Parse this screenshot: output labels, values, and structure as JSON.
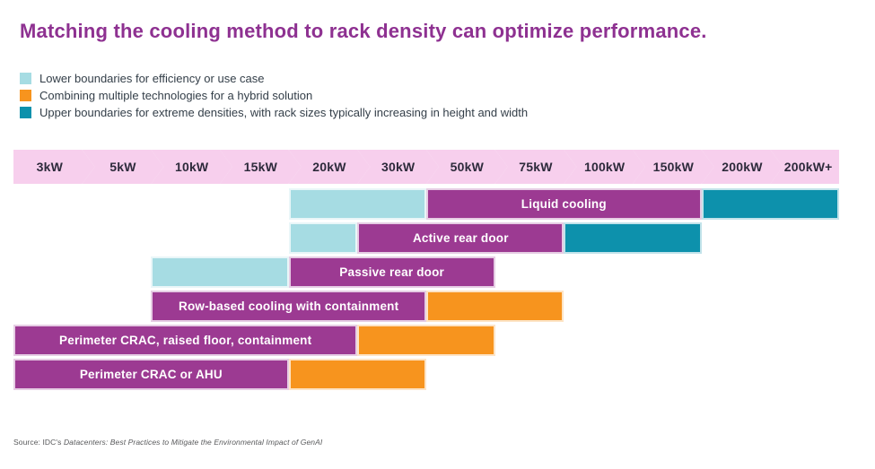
{
  "title": "Matching the cooling method to rack density can optimize performance.",
  "colors": {
    "title": "#8e3191",
    "legend_text": "#333e48",
    "axis_fill": "#f7cfed",
    "axis_text": "#2d2a3b"
  },
  "legend": {
    "items": [
      {
        "key": "lower",
        "color": "#a6dce3",
        "label": "Lower boundaries for efficiency or use case"
      },
      {
        "key": "hybrid",
        "color": "#f7941e",
        "label": "Combining multiple technologies for a hybrid solution"
      },
      {
        "key": "upper",
        "color": "#0d91ac",
        "label": "Upper boundaries for extreme densities, with rack sizes typically increasing in height and width"
      }
    ]
  },
  "chart_data": {
    "type": "range_bar",
    "title": "Cooling method vs. rack density",
    "x_axis": {
      "unit": "kW",
      "columns": [
        "3kW",
        "5kW",
        "10kW",
        "15kW",
        "20kW",
        "30kW",
        "50kW",
        "75kW",
        "100kW",
        "150kW",
        "200kW",
        "200kW+"
      ]
    },
    "colors": {
      "lower": "#a6dce3",
      "main": "#9c3a92",
      "hybrid": "#f7941e",
      "upper": "#0d91ac",
      "header": "#f7cfed"
    },
    "legend_position": "top-left",
    "rows": [
      {
        "label": "Liquid cooling",
        "segments": [
          {
            "type": "lower",
            "from": "20kW",
            "to": "50kW",
            "start": 4,
            "end": 6
          },
          {
            "type": "main",
            "from": "50kW",
            "to": "200kW",
            "start": 6,
            "end": 10
          },
          {
            "type": "upper",
            "from": "200kW",
            "to": "200kW+",
            "start": 10,
            "end": 12
          }
        ]
      },
      {
        "label": "Active rear door",
        "segments": [
          {
            "type": "lower",
            "from": "20kW",
            "to": "30kW",
            "start": 4,
            "end": 5
          },
          {
            "type": "main",
            "from": "30kW",
            "to": "100kW",
            "start": 5,
            "end": 8
          },
          {
            "type": "upper",
            "from": "100kW",
            "to": "200kW",
            "start": 8,
            "end": 10
          }
        ]
      },
      {
        "label": "Passive rear door",
        "segments": [
          {
            "type": "lower",
            "from": "10kW",
            "to": "20kW",
            "start": 2,
            "end": 4
          },
          {
            "type": "main",
            "from": "20kW",
            "to": "75kW",
            "start": 4,
            "end": 7
          }
        ]
      },
      {
        "label": "Row-based cooling with containment",
        "segments": [
          {
            "type": "main",
            "from": "10kW",
            "to": "50kW",
            "start": 2,
            "end": 6
          },
          {
            "type": "hybrid",
            "from": "50kW",
            "to": "100kW",
            "start": 6,
            "end": 8
          }
        ]
      },
      {
        "label": "Perimeter CRAC, raised floor, containment",
        "segments": [
          {
            "type": "main",
            "from": "3kW",
            "to": "30kW",
            "start": 0,
            "end": 5
          },
          {
            "type": "hybrid",
            "from": "30kW",
            "to": "75kW",
            "start": 5,
            "end": 7
          }
        ]
      },
      {
        "label": "Perimeter CRAC or AHU",
        "segments": [
          {
            "type": "main",
            "from": "3kW",
            "to": "20kW",
            "start": 0,
            "end": 4
          },
          {
            "type": "hybrid",
            "from": "20kW",
            "to": "50kW",
            "start": 4,
            "end": 6
          }
        ]
      }
    ]
  },
  "source": {
    "prefix": "Source: IDC's ",
    "publication": "Datacenters: Best Practices to Mitigate the Environmental Impact of GenAI"
  }
}
